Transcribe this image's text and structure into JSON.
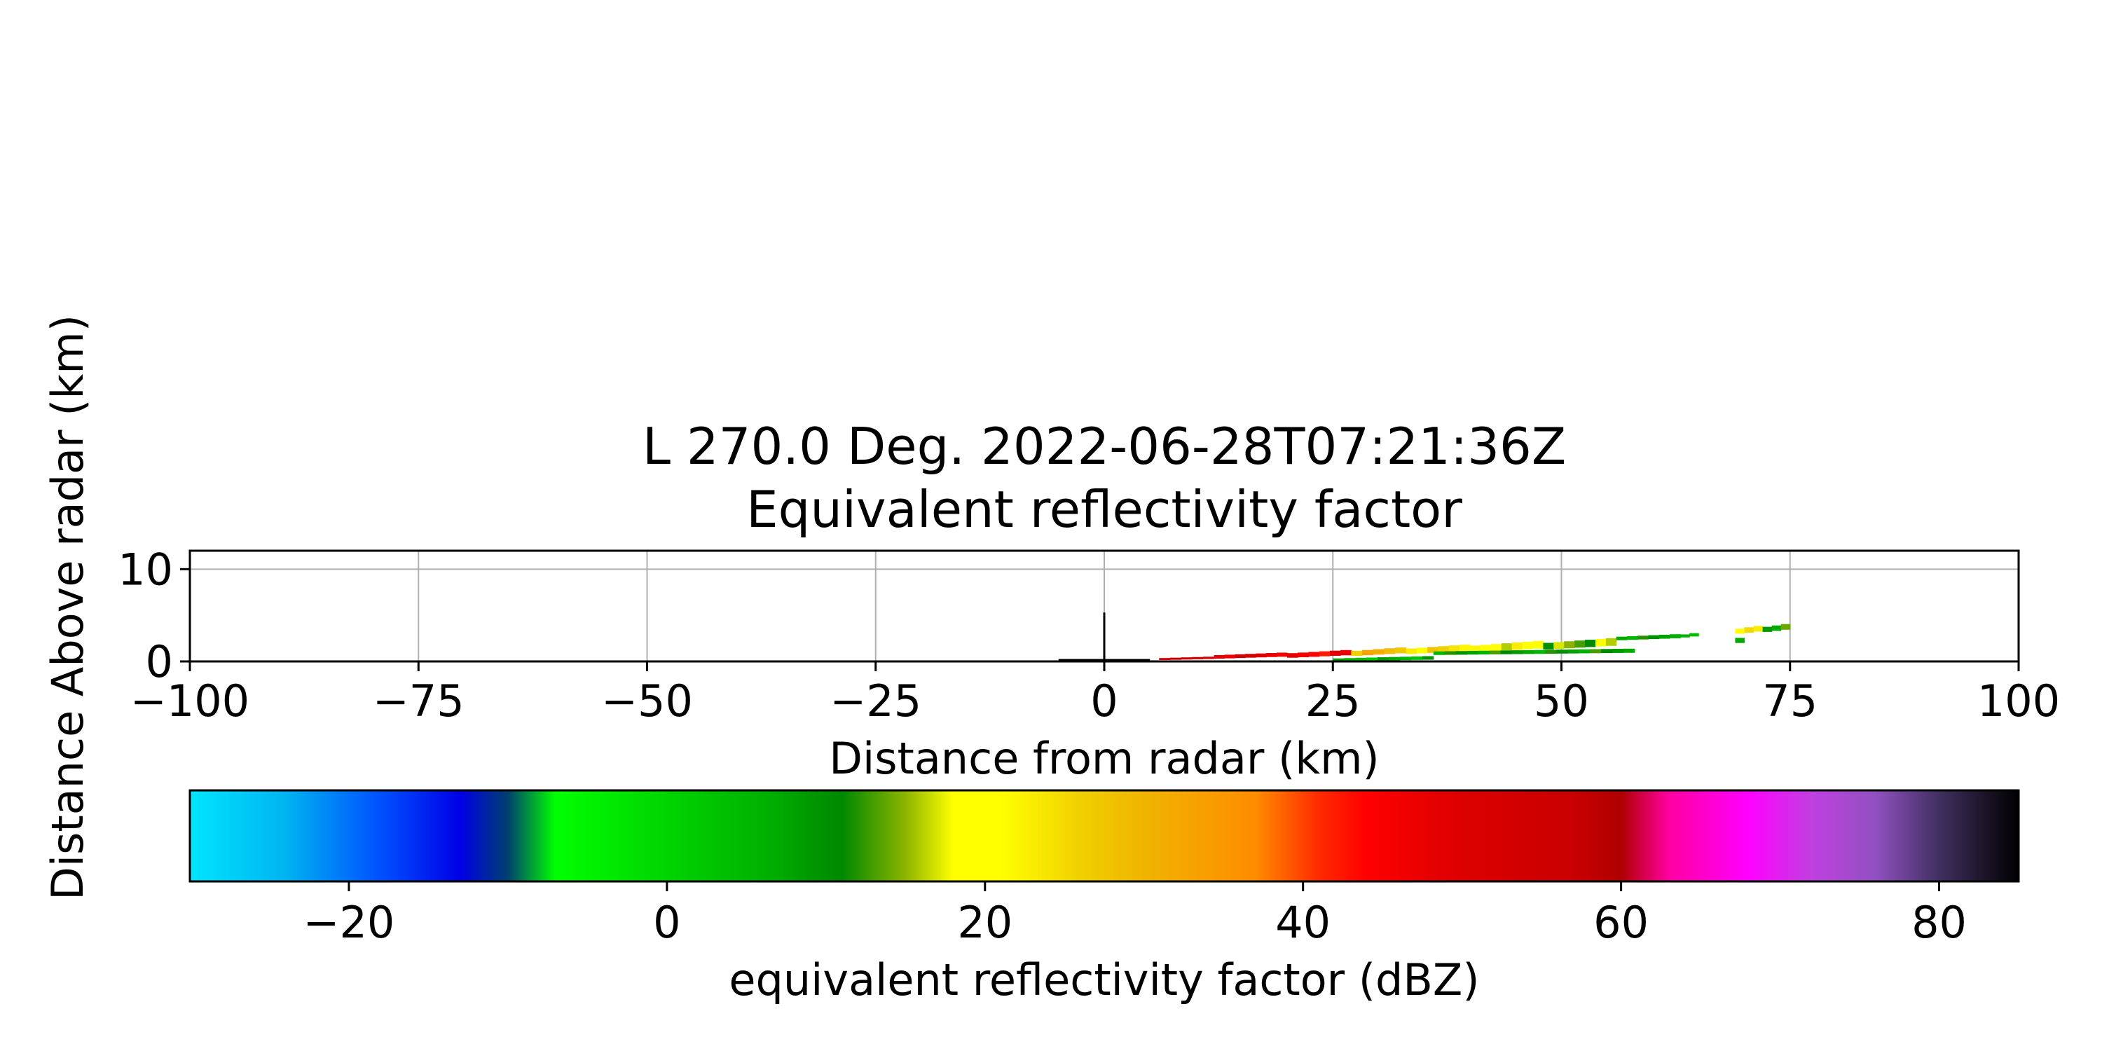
{
  "chart_data": [
    {
      "type": "heatmap",
      "title": "L 270.0 Deg. 2022-06-28T07:21:36Z",
      "subtitle": "Equivalent reflectivity factor",
      "xlabel": "Distance from radar (km)",
      "ylabel": "Distance Above radar  (km)",
      "xlim": [
        -100,
        100
      ],
      "ylim": [
        0,
        12
      ],
      "xticks": [
        "−100",
        "−75",
        "−50",
        "−25",
        "0",
        "25",
        "50",
        "75",
        "100"
      ],
      "xtick_values": [
        -100,
        -75,
        -50,
        -25,
        0,
        25,
        50,
        75,
        100
      ],
      "yticks": [
        "0",
        "10"
      ],
      "ytick_values": [
        0,
        10
      ],
      "grid": true,
      "radar_marker": {
        "x": 0,
        "height_km": 5.3,
        "baseline_from_km": -5,
        "baseline_to_km": 5
      },
      "reflectivity_segments": [
        {
          "x0": 6,
          "x1": 12,
          "y0": 0.15,
          "y1": 0.55,
          "dbz": 55
        },
        {
          "x0": 12,
          "x1": 20,
          "y0": 0.3,
          "y1": 1.0,
          "dbz": 50
        },
        {
          "x0": 20,
          "x1": 27,
          "y0": 0.4,
          "y1": 1.3,
          "dbz": 46
        },
        {
          "x0": 27,
          "x1": 33,
          "y0": 0.6,
          "y1": 1.6,
          "dbz": 30
        },
        {
          "x0": 33,
          "x1": 40,
          "y0": 0.8,
          "y1": 1.9,
          "dbz": 24
        },
        {
          "x0": 40,
          "x1": 48,
          "y0": 1.0,
          "y1": 2.3,
          "dbz": 20
        },
        {
          "x0": 48,
          "x1": 56,
          "y0": 1.3,
          "y1": 2.6,
          "dbz": 14
        },
        {
          "x0": 56,
          "x1": 63,
          "y0": 2.3,
          "y1": 3.0,
          "dbz": 8
        },
        {
          "x0": 63,
          "x1": 65,
          "y0": 2.6,
          "y1": 3.2,
          "dbz": 4
        },
        {
          "x0": 69,
          "x1": 72,
          "y0": 3.0,
          "y1": 4.0,
          "dbz": 22
        },
        {
          "x0": 72,
          "x1": 75,
          "y0": 3.2,
          "y1": 4.2,
          "dbz": 10
        },
        {
          "x0": 25,
          "x1": 36,
          "y0": 0.0,
          "y1": 0.6,
          "dbz": 6
        },
        {
          "x0": 36,
          "x1": 58,
          "y0": 0.7,
          "y1": 1.4,
          "dbz": 9
        },
        {
          "x0": 69,
          "x1": 70,
          "y0": 2.0,
          "y1": 3.0,
          "dbz": 8
        }
      ]
    },
    {
      "type": "colorbar",
      "label": "equivalent reflectivity factor (dBZ)",
      "range": [
        -30,
        85
      ],
      "ticks": [
        "−20",
        "0",
        "20",
        "40",
        "60",
        "80"
      ],
      "tick_values": [
        -20,
        0,
        20,
        40,
        60,
        80
      ],
      "colormap_stops": [
        {
          "v": -30,
          "c": "#00e5ff"
        },
        {
          "v": -24,
          "c": "#00b4f0"
        },
        {
          "v": -18,
          "c": "#0050ff"
        },
        {
          "v": -13,
          "c": "#0000e6"
        },
        {
          "v": -10,
          "c": "#00406e"
        },
        {
          "v": -7,
          "c": "#00ff00"
        },
        {
          "v": 0,
          "c": "#00d400"
        },
        {
          "v": 6,
          "c": "#00b200"
        },
        {
          "v": 11,
          "c": "#008800"
        },
        {
          "v": 15,
          "c": "#8cb400"
        },
        {
          "v": 18,
          "c": "#ffff00"
        },
        {
          "v": 21,
          "c": "#ffff00"
        },
        {
          "v": 26,
          "c": "#f0d000"
        },
        {
          "v": 30,
          "c": "#f0b400"
        },
        {
          "v": 37,
          "c": "#ff8c00"
        },
        {
          "v": 41,
          "c": "#ff2a00"
        },
        {
          "v": 44,
          "c": "#ff0000"
        },
        {
          "v": 50,
          "c": "#dc0000"
        },
        {
          "v": 57,
          "c": "#c80000"
        },
        {
          "v": 60,
          "c": "#b00000"
        },
        {
          "v": 63,
          "c": "#ff00a0"
        },
        {
          "v": 68,
          "c": "#ff00ff"
        },
        {
          "v": 72,
          "c": "#c040e0"
        },
        {
          "v": 76,
          "c": "#9050c0"
        },
        {
          "v": 80,
          "c": "#403060"
        },
        {
          "v": 85,
          "c": "#000000"
        }
      ]
    }
  ]
}
